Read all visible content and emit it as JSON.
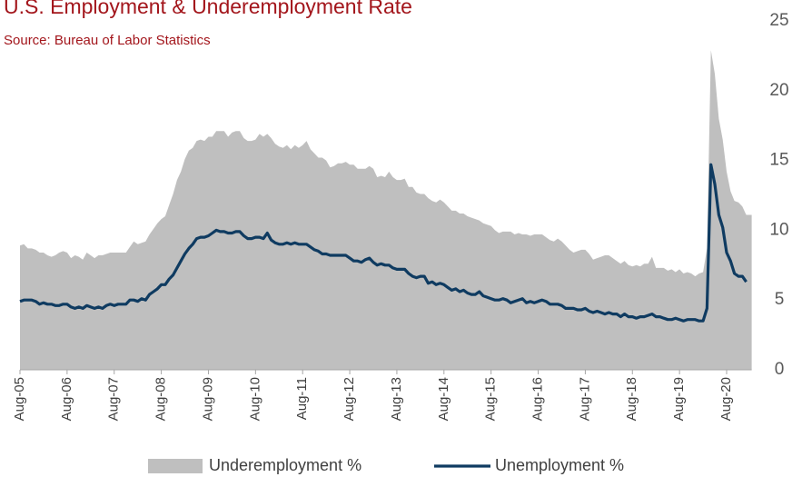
{
  "chart_data": {
    "type": "area-line",
    "title": "U.S. Employment & Underemployment Rate",
    "subtitle": "Source: Bureau of Labor Statistics",
    "categories": [
      "Aug-05",
      null,
      null,
      null,
      null,
      null,
      null,
      null,
      null,
      null,
      null,
      null,
      "Aug-06",
      null,
      null,
      null,
      null,
      null,
      null,
      null,
      null,
      null,
      null,
      null,
      "Aug-07",
      null,
      null,
      null,
      null,
      null,
      null,
      null,
      null,
      null,
      null,
      null,
      "Aug-08",
      null,
      null,
      null,
      null,
      null,
      null,
      null,
      null,
      null,
      null,
      null,
      "Aug-09",
      null,
      null,
      null,
      null,
      null,
      null,
      null,
      null,
      null,
      null,
      null,
      "Aug-10",
      null,
      null,
      null,
      null,
      null,
      null,
      null,
      null,
      null,
      null,
      null,
      "Aug-11",
      null,
      null,
      null,
      null,
      null,
      null,
      null,
      null,
      null,
      null,
      null,
      "Aug-12",
      null,
      null,
      null,
      null,
      null,
      null,
      null,
      null,
      null,
      null,
      null,
      "Aug-13",
      null,
      null,
      null,
      null,
      null,
      null,
      null,
      null,
      null,
      null,
      null,
      "Aug-14",
      null,
      null,
      null,
      null,
      null,
      null,
      null,
      null,
      null,
      null,
      null,
      "Aug-15",
      null,
      null,
      null,
      null,
      null,
      null,
      null,
      null,
      null,
      null,
      null,
      "Aug-16",
      null,
      null,
      null,
      null,
      null,
      null,
      null,
      null,
      null,
      null,
      null,
      "Aug-17",
      null,
      null,
      null,
      null,
      null,
      null,
      null,
      null,
      null,
      null,
      null,
      "Aug-18",
      null,
      null,
      null,
      null,
      null,
      null,
      null,
      null,
      null,
      null,
      null,
      "Aug-19",
      null,
      null,
      null,
      null,
      null,
      null,
      null,
      null,
      null,
      null,
      null,
      "Aug-20",
      null,
      null,
      null,
      null,
      null
    ],
    "series": [
      {
        "name": "Underemployment %",
        "color": "#bfbfbf",
        "kind": "area",
        "values": [
          8.9,
          9.0,
          8.7,
          8.7,
          8.6,
          8.4,
          8.4,
          8.2,
          8.1,
          8.2,
          8.4,
          8.5,
          8.4,
          8.0,
          8.2,
          8.1,
          7.9,
          8.4,
          8.2,
          8.0,
          8.2,
          8.2,
          8.3,
          8.4,
          8.4,
          8.4,
          8.4,
          8.4,
          8.8,
          9.2,
          9.0,
          9.1,
          9.2,
          9.7,
          10.1,
          10.5,
          10.8,
          11.0,
          11.8,
          12.6,
          13.6,
          14.2,
          15.1,
          15.7,
          15.9,
          16.4,
          16.5,
          16.4,
          16.7,
          16.7,
          17.1,
          17.1,
          17.1,
          16.7,
          17.0,
          17.1,
          17.1,
          16.6,
          16.4,
          16.4,
          16.5,
          16.9,
          16.7,
          16.9,
          16.6,
          16.2,
          16.0,
          15.9,
          16.1,
          15.8,
          16.1,
          15.9,
          16.1,
          16.4,
          15.8,
          15.5,
          15.2,
          15.2,
          15.0,
          14.5,
          14.6,
          14.8,
          14.8,
          14.9,
          14.7,
          14.7,
          14.4,
          14.4,
          14.4,
          14.6,
          14.4,
          13.8,
          13.9,
          13.8,
          14.2,
          13.8,
          13.6,
          13.6,
          13.7,
          13.1,
          13.1,
          12.7,
          12.6,
          12.6,
          12.3,
          12.1,
          12.0,
          12.2,
          12.0,
          11.7,
          11.4,
          11.4,
          11.2,
          11.2,
          11.0,
          10.9,
          10.8,
          10.7,
          10.5,
          10.4,
          10.3,
          10.0,
          9.8,
          9.9,
          9.9,
          9.9,
          9.7,
          9.8,
          9.7,
          9.7,
          9.6,
          9.7,
          9.7,
          9.7,
          9.5,
          9.3,
          9.2,
          9.4,
          9.2,
          8.9,
          8.6,
          8.4,
          8.5,
          8.6,
          8.6,
          8.3,
          7.9,
          8.0,
          8.1,
          8.2,
          8.2,
          8.0,
          7.8,
          7.6,
          7.8,
          7.5,
          7.4,
          7.5,
          7.4,
          7.6,
          7.6,
          8.1,
          7.3,
          7.3,
          7.3,
          7.1,
          7.2,
          7.0,
          7.2,
          6.9,
          7.0,
          6.9,
          6.7,
          6.9,
          7.0,
          8.7,
          22.9,
          21.2,
          18.0,
          16.5,
          14.2,
          12.8,
          12.1,
          12.0,
          11.7,
          11.1
        ]
      },
      {
        "name": "Unemployment %",
        "color": "#0f3b61",
        "kind": "line",
        "values": [
          4.9,
          5.0,
          5.0,
          5.0,
          4.9,
          4.7,
          4.8,
          4.7,
          4.7,
          4.6,
          4.6,
          4.7,
          4.7,
          4.5,
          4.4,
          4.5,
          4.4,
          4.6,
          4.5,
          4.4,
          4.5,
          4.4,
          4.6,
          4.7,
          4.6,
          4.7,
          4.7,
          4.7,
          5.0,
          5.0,
          4.9,
          5.1,
          5.0,
          5.4,
          5.6,
          5.8,
          6.1,
          6.1,
          6.5,
          6.8,
          7.3,
          7.8,
          8.3,
          8.7,
          9.0,
          9.4,
          9.5,
          9.5,
          9.6,
          9.8,
          10.0,
          9.9,
          9.9,
          9.8,
          9.8,
          9.9,
          9.9,
          9.6,
          9.4,
          9.4,
          9.5,
          9.5,
          9.4,
          9.8,
          9.3,
          9.1,
          9.0,
          9.0,
          9.1,
          9.0,
          9.1,
          9.0,
          9.0,
          9.0,
          8.8,
          8.6,
          8.5,
          8.3,
          8.3,
          8.2,
          8.2,
          8.2,
          8.2,
          8.2,
          8.0,
          7.8,
          7.8,
          7.7,
          7.9,
          8.0,
          7.7,
          7.5,
          7.6,
          7.5,
          7.5,
          7.3,
          7.2,
          7.2,
          7.2,
          6.9,
          6.7,
          6.6,
          6.7,
          6.7,
          6.2,
          6.3,
          6.1,
          6.2,
          6.1,
          5.9,
          5.7,
          5.8,
          5.6,
          5.7,
          5.5,
          5.4,
          5.4,
          5.6,
          5.3,
          5.2,
          5.1,
          5.0,
          5.0,
          5.1,
          5.0,
          4.8,
          4.9,
          5.0,
          5.1,
          4.8,
          4.9,
          4.8,
          4.9,
          5.0,
          4.9,
          4.7,
          4.7,
          4.7,
          4.6,
          4.4,
          4.4,
          4.4,
          4.3,
          4.3,
          4.4,
          4.2,
          4.1,
          4.2,
          4.1,
          4.0,
          4.1,
          4.0,
          4.0,
          3.8,
          4.0,
          3.8,
          3.8,
          3.7,
          3.8,
          3.8,
          3.9,
          4.0,
          3.8,
          3.8,
          3.7,
          3.6,
          3.6,
          3.7,
          3.6,
          3.5,
          3.6,
          3.6,
          3.6,
          3.5,
          3.5,
          4.4,
          14.7,
          13.3,
          11.1,
          10.2,
          8.4,
          7.8,
          6.9,
          6.7,
          6.7,
          6.3
        ]
      }
    ],
    "ylim": [
      0,
      25
    ],
    "yticks": [
      0,
      5,
      10,
      15,
      20,
      25
    ],
    "y_axis_side": "right",
    "grid": false,
    "legend": "bottom"
  }
}
